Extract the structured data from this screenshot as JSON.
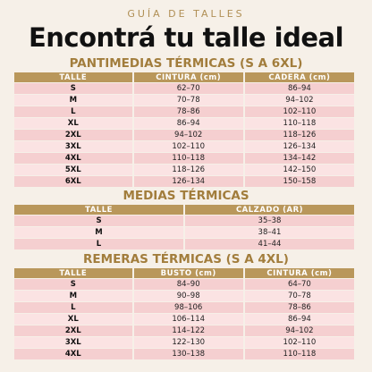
{
  "header": {
    "subtitle": "GUÍA DE TALLES",
    "title": "Encontrá tu talle ideal"
  },
  "sections": [
    {
      "title": "PANTIMEDIAS TÉRMICAS (S A 6XL)",
      "columns": [
        "TALLE",
        "CINTURA (cm)",
        "CADERA (cm)"
      ],
      "rows": [
        [
          "S",
          "62–70",
          "86–94"
        ],
        [
          "M",
          "70–78",
          "94–102"
        ],
        [
          "L",
          "78–86",
          "102–110"
        ],
        [
          "XL",
          "86–94",
          "110–118"
        ],
        [
          "2XL",
          "94–102",
          "118–126"
        ],
        [
          "3XL",
          "102–110",
          "126–134"
        ],
        [
          "4XL",
          "110–118",
          "134–142"
        ],
        [
          "5XL",
          "118–126",
          "142–150"
        ],
        [
          "6XL",
          "126–134",
          "150–158"
        ]
      ]
    },
    {
      "title": "MEDIAS TÉRMICAS",
      "columns": [
        "TALLE",
        "CALZADO (AR)"
      ],
      "rows": [
        [
          "S",
          "35–38"
        ],
        [
          "M",
          "38–41"
        ],
        [
          "L",
          "41–44"
        ]
      ]
    },
    {
      "title": "REMERAS TÉRMICAS (S A 4XL)",
      "columns": [
        "TALLE",
        "BUSTO (cm)",
        "CINTURA (cm)"
      ],
      "rows": [
        [
          "S",
          "84–90",
          "64–70"
        ],
        [
          "M",
          "90–98",
          "70–78"
        ],
        [
          "L",
          "98–106",
          "78–86"
        ],
        [
          "XL",
          "106–114",
          "86–94"
        ],
        [
          "2XL",
          "114–122",
          "94–102"
        ],
        [
          "3XL",
          "122–130",
          "102–110"
        ],
        [
          "4XL",
          "130–138",
          "110–118"
        ]
      ]
    }
  ]
}
